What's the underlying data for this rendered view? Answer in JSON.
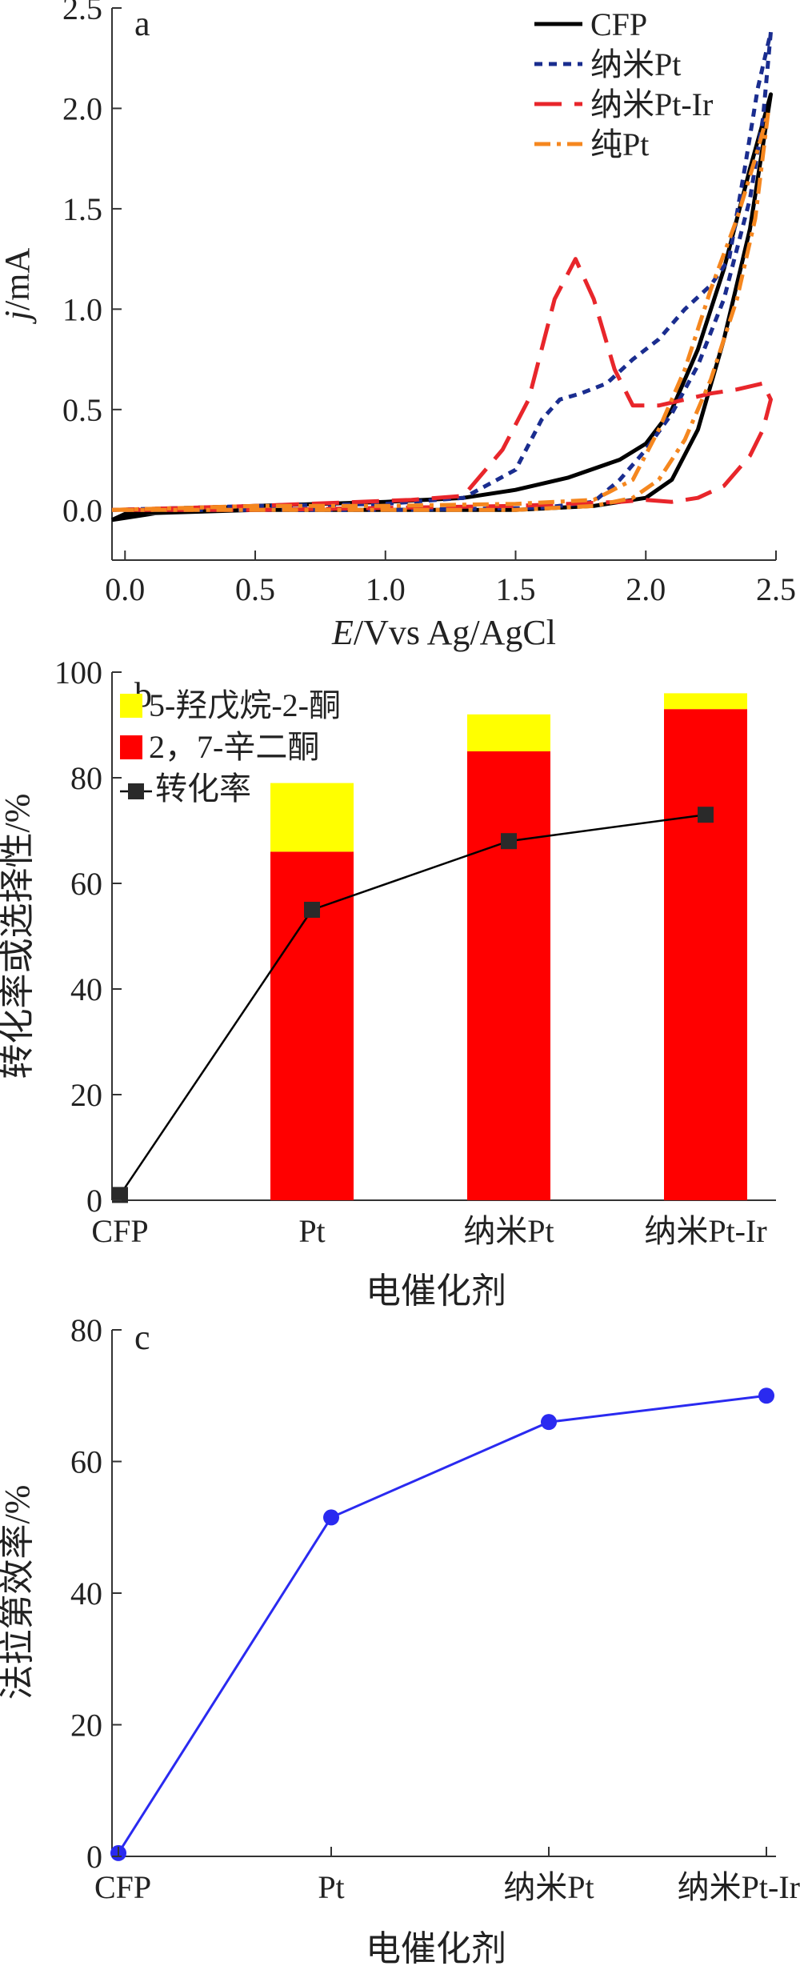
{
  "chart_data": [
    {
      "panel": "a",
      "type": "line",
      "xlabel_italic": "E",
      "xlabel_rest": "/Vvs Ag/AgCl",
      "ylabel_italic": "j",
      "ylabel_rest": "/mA",
      "xlim": [
        -0.05,
        2.5
      ],
      "ylim": [
        -0.25,
        2.5
      ],
      "xticks": [
        "0.0",
        "0.5",
        "1.0",
        "1.5",
        "2.0",
        "2.5"
      ],
      "yticks": [
        "0.0",
        "0.5",
        "1.0",
        "1.5",
        "2.0",
        "2.5"
      ],
      "legend_position": "top-right",
      "series": [
        {
          "name": "CFP",
          "color": "#000000",
          "dash": "solid",
          "forward": [
            [
              -0.05,
              -0.05
            ],
            [
              0.2,
              0.0
            ],
            [
              0.5,
              0.02
            ],
            [
              1.0,
              0.04
            ],
            [
              1.3,
              0.06
            ],
            [
              1.5,
              0.1
            ],
            [
              1.7,
              0.16
            ],
            [
              1.9,
              0.25
            ],
            [
              2.0,
              0.33
            ],
            [
              2.1,
              0.5
            ],
            [
              2.2,
              0.8
            ],
            [
              2.3,
              1.2
            ],
            [
              2.4,
              1.7
            ],
            [
              2.48,
              2.07
            ]
          ],
          "reverse": [
            [
              2.48,
              2.07
            ],
            [
              2.4,
              1.4
            ],
            [
              2.3,
              0.85
            ],
            [
              2.2,
              0.4
            ],
            [
              2.1,
              0.15
            ],
            [
              2.0,
              0.06
            ],
            [
              1.8,
              0.02
            ],
            [
              1.5,
              0.0
            ],
            [
              1.0,
              0.0
            ],
            [
              0.5,
              0.0
            ],
            [
              0.0,
              -0.02
            ],
            [
              -0.05,
              -0.05
            ]
          ]
        },
        {
          "name": "纳米Pt",
          "color": "#1a2d8f",
          "dash": "short",
          "forward": [
            [
              -0.05,
              0.0
            ],
            [
              0.5,
              0.02
            ],
            [
              1.0,
              0.03
            ],
            [
              1.3,
              0.06
            ],
            [
              1.5,
              0.2
            ],
            [
              1.6,
              0.45
            ],
            [
              1.67,
              0.55
            ],
            [
              1.75,
              0.58
            ],
            [
              1.85,
              0.63
            ],
            [
              1.95,
              0.75
            ],
            [
              2.05,
              0.85
            ],
            [
              2.15,
              1.0
            ],
            [
              2.25,
              1.12
            ],
            [
              2.32,
              1.25
            ],
            [
              2.38,
              1.7
            ],
            [
              2.43,
              2.1
            ],
            [
              2.48,
              2.38
            ]
          ],
          "reverse": [
            [
              2.48,
              2.38
            ],
            [
              2.45,
              1.95
            ],
            [
              2.4,
              1.55
            ],
            [
              2.3,
              1.05
            ],
            [
              2.2,
              0.72
            ],
            [
              2.1,
              0.48
            ],
            [
              2.0,
              0.3
            ],
            [
              1.9,
              0.15
            ],
            [
              1.8,
              0.04
            ],
            [
              1.6,
              0.01
            ],
            [
              1.0,
              0.0
            ],
            [
              0.5,
              0.0
            ],
            [
              -0.05,
              0.0
            ]
          ]
        },
        {
          "name": "纳米Pt-Ir",
          "color": "#e8262b",
          "dash": "long",
          "forward": [
            [
              -0.05,
              0.0
            ],
            [
              0.5,
              0.02
            ],
            [
              0.9,
              0.04
            ],
            [
              1.1,
              0.05
            ],
            [
              1.3,
              0.07
            ],
            [
              1.45,
              0.3
            ],
            [
              1.55,
              0.55
            ],
            [
              1.65,
              1.05
            ],
            [
              1.73,
              1.25
            ],
            [
              1.8,
              1.05
            ],
            [
              1.88,
              0.7
            ],
            [
              1.95,
              0.52
            ],
            [
              2.05,
              0.52
            ],
            [
              2.15,
              0.55
            ],
            [
              2.25,
              0.58
            ],
            [
              2.35,
              0.6
            ],
            [
              2.45,
              0.63
            ],
            [
              2.48,
              0.55
            ]
          ],
          "reverse": [
            [
              2.48,
              0.55
            ],
            [
              2.45,
              0.4
            ],
            [
              2.4,
              0.27
            ],
            [
              2.3,
              0.12
            ],
            [
              2.2,
              0.06
            ],
            [
              2.1,
              0.04
            ],
            [
              2.0,
              0.05
            ],
            [
              1.9,
              0.04
            ],
            [
              1.5,
              0.02
            ],
            [
              1.0,
              0.01
            ],
            [
              0.5,
              0.0
            ],
            [
              -0.05,
              0.0
            ]
          ]
        },
        {
          "name": "纯Pt",
          "color": "#f5871f",
          "dash": "dashdot",
          "forward": [
            [
              -0.05,
              0.0
            ],
            [
              0.5,
              0.02
            ],
            [
              1.0,
              0.02
            ],
            [
              1.5,
              0.03
            ],
            [
              1.8,
              0.05
            ],
            [
              1.95,
              0.15
            ],
            [
              2.05,
              0.4
            ],
            [
              2.15,
              0.7
            ],
            [
              2.25,
              1.1
            ],
            [
              2.35,
              1.45
            ],
            [
              2.42,
              1.75
            ],
            [
              2.47,
              1.98
            ]
          ],
          "reverse": [
            [
              2.47,
              1.98
            ],
            [
              2.42,
              1.45
            ],
            [
              2.35,
              1.05
            ],
            [
              2.25,
              0.65
            ],
            [
              2.15,
              0.35
            ],
            [
              2.05,
              0.15
            ],
            [
              1.95,
              0.06
            ],
            [
              1.8,
              0.02
            ],
            [
              1.5,
              0.0
            ],
            [
              1.0,
              0.0
            ],
            [
              0.5,
              0.0
            ],
            [
              -0.05,
              0.0
            ]
          ]
        }
      ]
    },
    {
      "panel": "b",
      "type": "bar",
      "xlabel": "电催化剂",
      "ylabel": "转化率或选择性/%",
      "categories": [
        "CFP",
        "Pt",
        "纳米Pt",
        "纳米Pt-Ir"
      ],
      "ylim": [
        0,
        100
      ],
      "yticks": [
        "0",
        "20",
        "40",
        "60",
        "80",
        "100"
      ],
      "legend_position": "top-left",
      "series": [
        {
          "name": "2，7-辛二酮",
          "color": "#ff0000",
          "values": [
            0,
            66,
            85,
            93
          ]
        },
        {
          "name": "5-羟戊烷-2-酮",
          "color": "#ffff00",
          "values": [
            0,
            13,
            7,
            3
          ]
        }
      ],
      "line_series": {
        "name": "转化率",
        "color": "#000000",
        "values": [
          1,
          55,
          68,
          73
        ]
      }
    },
    {
      "panel": "c",
      "type": "line",
      "xlabel": "电催化剂",
      "ylabel": "法拉第效率/%",
      "categories": [
        "CFP",
        "Pt",
        "纳米Pt",
        "纳米Pt-Ir"
      ],
      "ylim": [
        0,
        80
      ],
      "yticks": [
        "0",
        "20",
        "40",
        "60",
        "80"
      ],
      "series": [
        {
          "color": "#2a2af0",
          "values": [
            0.5,
            51.5,
            66,
            70
          ]
        }
      ]
    }
  ]
}
